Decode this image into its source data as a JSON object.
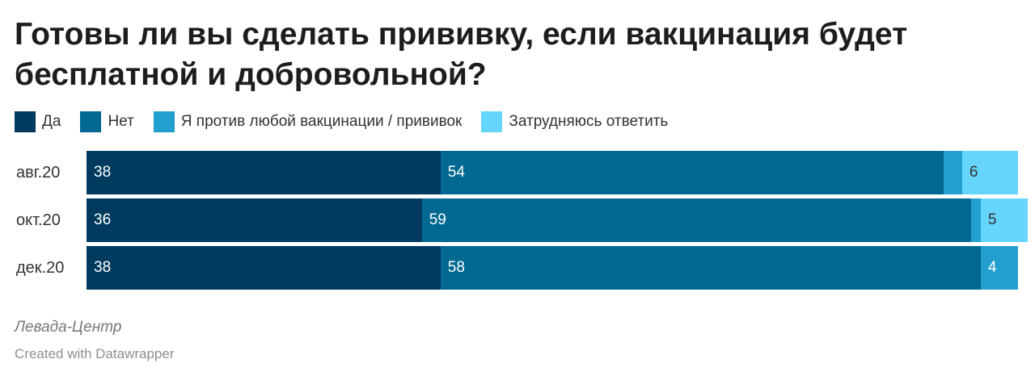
{
  "title": "Готовы ли вы сделать прививку, если вакцинация будет бесплатной и добровольной?",
  "source": "Левада-Центр",
  "credit": "Created with Datawrapper",
  "colors": {
    "Да": "#003a5f",
    "Нет": "#006891",
    "Я против любой вакцинации / прививок": "#229fcf",
    "Затрудняюсь ответить": "#65d5fb"
  },
  "chart_data": {
    "type": "bar",
    "orientation": "horizontal",
    "stacked": true,
    "title": "Готовы ли вы сделать прививку, если вакцинация будет бесплатной и добровольной?",
    "categories": [
      "авг.20",
      "окт.20",
      "дек.20"
    ],
    "series": [
      {
        "name": "Да",
        "values": [
          38,
          36,
          38
        ]
      },
      {
        "name": "Нет",
        "values": [
          54,
          59,
          58
        ]
      },
      {
        "name": "Я против любой вакцинации / прививок",
        "values": [
          2,
          1,
          4
        ]
      },
      {
        "name": "Затрудняюсь ответить",
        "values": [
          6,
          5,
          0
        ]
      }
    ],
    "data_labels": [
      [
        "38",
        "54",
        "",
        "6"
      ],
      [
        "36",
        "59",
        "",
        "5"
      ],
      [
        "38",
        "58",
        "4",
        ""
      ]
    ],
    "xlim": [
      0,
      100
    ],
    "legend": "top-left",
    "grid": false
  }
}
